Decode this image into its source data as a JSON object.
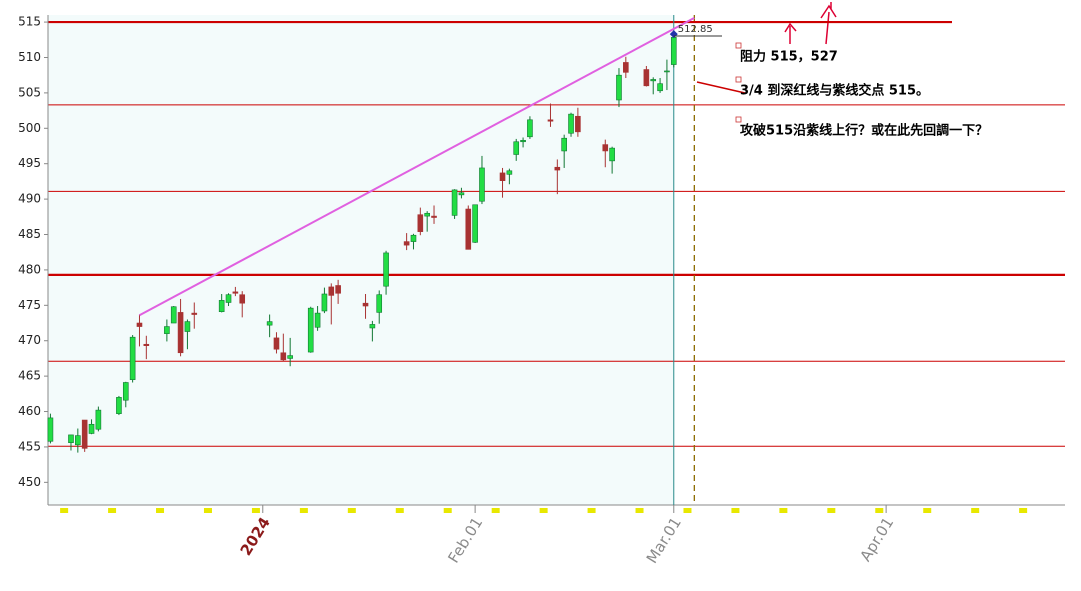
{
  "chart_data": {
    "type": "candlestick",
    "categories": [
      null,
      null,
      null,
      null,
      null,
      null,
      null,
      null,
      null,
      null,
      null,
      null,
      null,
      null,
      null,
      null,
      null,
      null,
      null,
      null,
      null,
      null,
      null,
      null,
      null,
      null,
      null,
      null,
      null,
      null,
      null,
      "2024",
      null,
      null,
      null,
      null,
      null,
      null,
      null,
      null,
      null,
      null,
      null,
      null,
      null,
      null,
      null,
      null,
      null,
      null,
      null,
      null,
      null,
      null,
      null,
      null,
      null,
      null,
      null,
      null,
      null,
      null,
      "Feb.01",
      null,
      null,
      null,
      null,
      null,
      null,
      null,
      null,
      null,
      null,
      null,
      null,
      null,
      null,
      null,
      null,
      null,
      null,
      null,
      null,
      null,
      null,
      null,
      null,
      null,
      null,
      null,
      null,
      "Mar.01",
      null,
      null,
      null,
      null,
      null,
      null,
      null,
      null,
      null,
      null,
      null,
      null,
      null,
      null,
      null,
      null,
      null,
      null,
      null,
      null,
      null,
      null,
      null,
      null,
      null,
      null,
      null,
      null,
      null,
      null,
      "Apr.01",
      null,
      null,
      null,
      null,
      null,
      null,
      null,
      null,
      null,
      null,
      null,
      null,
      null,
      null,
      null,
      null,
      null,
      null,
      null,
      null,
      null,
      null,
      null,
      null,
      null
    ],
    "open": [
      455.8,
      null,
      null,
      455.6,
      455.3,
      458.8,
      456.9,
      457.5,
      null,
      null,
      459.7,
      461.6,
      464.5,
      472.5,
      469.5,
      null,
      null,
      471.0,
      472.5,
      474.0,
      471.3,
      473.9,
      null,
      null,
      null,
      474.1,
      475.4,
      476.9,
      476.5,
      null,
      null,
      null,
      472.2,
      470.4,
      468.3,
      467.5,
      null,
      null,
      468.4,
      471.9,
      474.2,
      477.6,
      477.8,
      null,
      null,
      null,
      475.3,
      471.8,
      474.0,
      477.7,
      null,
      null,
      484.0,
      484.0,
      487.8,
      487.6,
      487.6,
      null,
      null,
      487.7,
      490.6,
      488.6,
      483.9,
      489.7,
      null,
      null,
      493.7,
      493.5,
      496.3,
      498.1,
      498.8,
      null,
      null,
      501.2,
      494.5,
      496.8,
      499.3,
      501.7,
      null,
      null,
      null,
      497.7,
      495.4,
      504.0,
      509.3,
      null,
      null,
      508.3,
      506.7,
      505.3,
      508.1,
      509.0,
      null,
      null,
      null,
      null,
      null,
      null,
      null,
      null,
      null,
      null,
      null,
      null,
      null,
      null,
      null,
      null,
      null,
      null,
      null,
      null,
      null,
      null,
      null,
      null,
      null,
      null,
      null,
      null,
      null,
      null,
      null,
      null,
      null,
      null,
      null,
      null,
      null,
      null,
      null,
      null,
      null,
      null,
      null,
      null,
      null,
      null,
      null,
      null,
      null,
      null,
      null,
      null,
      null,
      null,
      null,
      null
    ],
    "high": [
      459.7,
      null,
      null,
      456.7,
      457.6,
      458.8,
      458.9,
      460.7,
      null,
      null,
      462.2,
      464.2,
      470.8,
      473.7,
      470.7,
      null,
      null,
      473.0,
      474.9,
      475.9,
      473.0,
      475.4,
      null,
      null,
      null,
      476.6,
      476.7,
      477.6,
      477.0,
      null,
      null,
      null,
      473.7,
      471.2,
      471.0,
      470.4,
      null,
      null,
      474.8,
      474.9,
      477.5,
      478.1,
      478.6,
      null,
      null,
      null,
      476.6,
      472.8,
      477.1,
      482.7,
      null,
      null,
      485.2,
      485.1,
      488.8,
      488.3,
      489.1,
      null,
      null,
      491.4,
      491.6,
      489.1,
      489.2,
      496.1,
      null,
      null,
      494.4,
      494.3,
      498.5,
      498.7,
      501.7,
      null,
      null,
      503.5,
      495.6,
      499.1,
      502.2,
      502.9,
      null,
      null,
      null,
      498.4,
      497.4,
      508.5,
      510.1,
      null,
      null,
      508.8,
      507.2,
      507.1,
      509.7,
      513.3,
      null,
      null,
      null,
      null,
      null,
      null,
      null,
      null,
      null,
      null,
      null,
      null,
      null,
      null,
      null,
      null,
      null,
      null,
      null,
      null,
      null,
      null,
      null,
      null,
      null,
      null,
      null,
      null,
      null,
      null,
      null,
      null,
      null,
      null,
      null,
      null,
      null,
      null,
      null,
      null,
      null,
      null,
      null,
      null,
      null,
      null,
      null,
      null,
      null,
      null,
      null,
      null,
      null,
      null,
      null,
      null
    ],
    "low": [
      455.5,
      null,
      null,
      454.5,
      454.2,
      454.3,
      456.8,
      457.2,
      null,
      null,
      459.5,
      460.6,
      464.1,
      469.2,
      467.4,
      null,
      null,
      469.9,
      472.5,
      467.8,
      468.8,
      471.7,
      null,
      null,
      null,
      474.0,
      474.9,
      476.3,
      473.3,
      null,
      null,
      null,
      470.5,
      468.2,
      467.1,
      466.4,
      null,
      null,
      468.3,
      471.4,
      473.9,
      472.3,
      475.2,
      null,
      null,
      null,
      473.1,
      469.9,
      472.4,
      476.5,
      null,
      null,
      482.8,
      482.9,
      484.9,
      485.4,
      486.5,
      null,
      null,
      487.2,
      490.1,
      482.9,
      483.8,
      489.3,
      null,
      null,
      490.2,
      492.1,
      495.4,
      497.3,
      498.5,
      null,
      null,
      500.2,
      490.7,
      494.4,
      498.8,
      498.8,
      null,
      null,
      null,
      494.5,
      493.6,
      503.0,
      507.1,
      null,
      null,
      505.9,
      504.8,
      505.0,
      505.4,
      508.6,
      null,
      null,
      null,
      null,
      null,
      null,
      null,
      null,
      null,
      null,
      null,
      null,
      null,
      null,
      null,
      null,
      null,
      null,
      null,
      null,
      null,
      null,
      null,
      null,
      null,
      null,
      null,
      null,
      null,
      null,
      null,
      null,
      null,
      null,
      null,
      null,
      null,
      null,
      null,
      null,
      null,
      null,
      null,
      null,
      null,
      null,
      null,
      null,
      null,
      null,
      null,
      null,
      null,
      null,
      null,
      null
    ],
    "close": [
      459.1,
      null,
      null,
      456.7,
      456.6,
      454.8,
      458.2,
      460.2,
      null,
      null,
      462.0,
      464.1,
      470.5,
      472.0,
      469.3,
      null,
      null,
      472.0,
      474.8,
      468.3,
      472.7,
      473.7,
      null,
      null,
      null,
      475.7,
      476.5,
      476.7,
      475.3,
      null,
      null,
      null,
      472.7,
      468.8,
      467.3,
      467.9,
      null,
      null,
      474.6,
      473.9,
      476.6,
      476.4,
      476.7,
      null,
      null,
      null,
      474.9,
      472.3,
      476.5,
      482.4,
      null,
      null,
      483.5,
      484.9,
      485.4,
      488.0,
      487.4,
      null,
      null,
      491.3,
      490.9,
      482.9,
      489.2,
      494.4,
      null,
      null,
      492.6,
      494.0,
      498.1,
      498.3,
      501.2,
      null,
      null,
      501.0,
      494.1,
      498.6,
      502.0,
      499.5,
      null,
      null,
      null,
      496.8,
      497.2,
      507.5,
      507.9,
      null,
      null,
      506.0,
      506.9,
      506.3,
      508.1,
      512.85,
      null,
      null,
      null,
      null,
      null,
      null,
      null,
      null,
      null,
      null,
      null,
      null,
      null,
      null,
      null,
      null,
      null,
      null,
      null,
      null,
      null,
      null,
      null,
      null,
      null,
      null,
      null,
      null,
      null,
      null,
      null,
      null,
      null,
      null,
      null,
      null,
      null,
      null,
      null,
      null,
      null,
      null,
      null,
      null,
      null,
      null,
      null,
      null,
      null,
      null,
      null,
      null,
      null,
      null,
      null,
      null
    ],
    "up_color": "#22dd44",
    "down_color": "#a83232",
    "ylim": [
      446.8,
      516
    ],
    "yticks": [
      450,
      455,
      460,
      465,
      470,
      475,
      480,
      485,
      490,
      495,
      500,
      505,
      510,
      515
    ],
    "hlines": [
      {
        "value": 515,
        "style": "heavy"
      },
      {
        "value": 503.3,
        "style": "thin"
      },
      {
        "value": 491.1,
        "style": "thin"
      },
      {
        "value": 479.3,
        "style": "heavy"
      },
      {
        "value": 467.1,
        "style": "thin"
      },
      {
        "value": 455.1,
        "style": "thin"
      }
    ],
    "hline_color": "#cc0000",
    "trendline": {
      "x": [
        13,
        94
      ],
      "y": [
        473.6,
        515.6
      ],
      "color": "#e060e0"
    },
    "vlines": [
      {
        "at": 91,
        "color": "#2a8a8a",
        "dashed": false
      },
      {
        "at": 94,
        "color": "#8b6b00",
        "dashed": true
      }
    ],
    "annotations": [
      "阻力 515，527",
      "3/4 到深红线与紫线交点 515。",
      "攻破515沿紫线上行？或在此先回調一下？"
    ]
  }
}
